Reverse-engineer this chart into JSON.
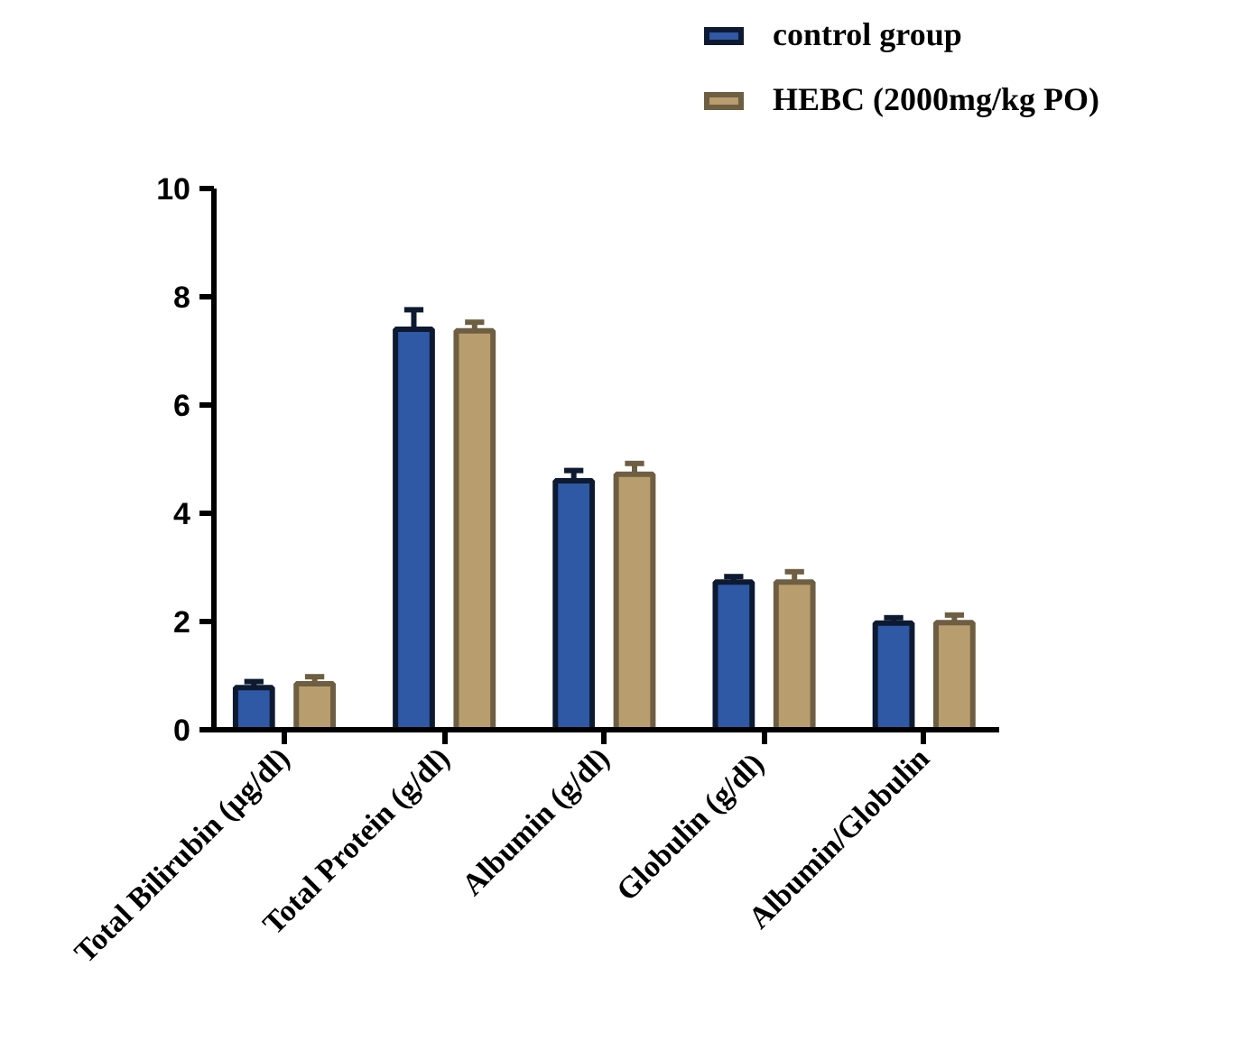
{
  "chart_data": {
    "type": "bar",
    "categories": [
      "Total Bilirubin (μg/dl)",
      "Total Protein (g/dl)",
      "Albumin (g/dl)",
      "Globulin  (g/dl)",
      "Albumin/Globulin"
    ],
    "series": [
      {
        "name": "control group",
        "color": "#2f58a5",
        "values": [
          0.78,
          7.4,
          4.6,
          2.73,
          1.97
        ],
        "errors": [
          [
            0.78,
            0.89
          ],
          [
            7.4,
            7.76
          ],
          [
            4.6,
            4.79
          ],
          [
            2.73,
            2.83
          ],
          [
            1.97,
            2.07
          ]
        ]
      },
      {
        "name": "HEBC (2000mg/kg PO)",
        "color": "#b89d6e",
        "values": [
          0.85,
          7.37,
          4.72,
          2.73,
          1.98
        ],
        "errors": [
          [
            0.85,
            0.98
          ],
          [
            7.37,
            7.53
          ],
          [
            4.72,
            4.92
          ],
          [
            2.73,
            2.92
          ],
          [
            1.98,
            2.12
          ]
        ]
      }
    ],
    "ylim": [
      0,
      10
    ],
    "yticks": [
      0,
      2,
      4,
      6,
      8,
      10
    ],
    "grid": false,
    "legend": "top right"
  }
}
